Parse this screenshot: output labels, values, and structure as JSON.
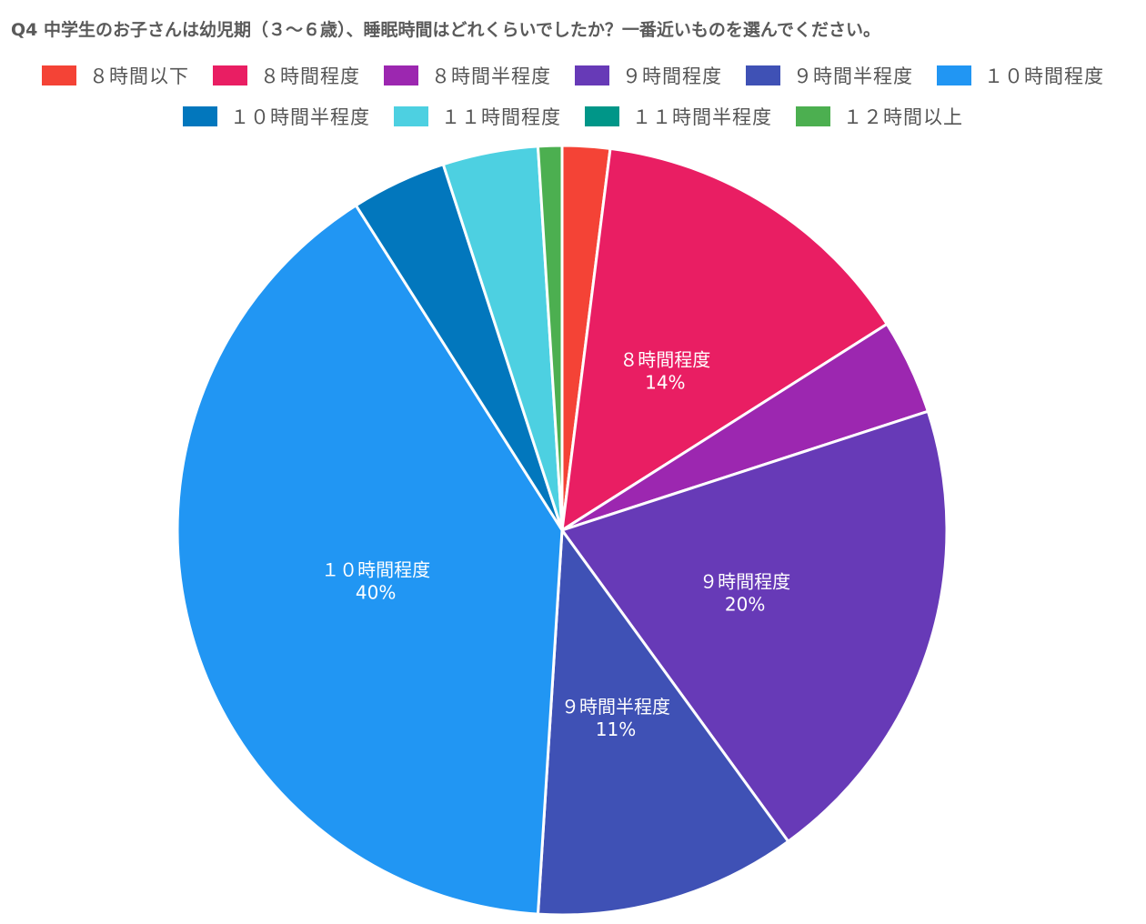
{
  "title": "Q4 中学生のお子さんは幼児期（３〜６歳）、睡眠時間はどれくらいでしたか？一番近いものを選んでください。",
  "chart_data": {
    "type": "pie",
    "title": "Q4 中学生のお子さんは幼児期（３〜６歳）、睡眠時間はどれくらいでしたか？一番近いものを選んでください。",
    "legend_position": "top",
    "slices": [
      {
        "label": "８時間以下",
        "value": 2,
        "color": "#F44336"
      },
      {
        "label": "８時間程度",
        "value": 14,
        "color": "#E91E63",
        "data_label": "14%"
      },
      {
        "label": "８時間半程度",
        "value": 4,
        "color": "#9C27B0"
      },
      {
        "label": "９時間程度",
        "value": 20,
        "color": "#673AB7",
        "data_label": "20%"
      },
      {
        "label": "９時間半程度",
        "value": 11,
        "color": "#3F51B5",
        "data_label": "11%"
      },
      {
        "label": "１０時間程度",
        "value": 40,
        "color": "#2196F3",
        "data_label": "40%"
      },
      {
        "label": "１０時間半程度",
        "value": 4,
        "color": "#0277BD"
      },
      {
        "label": "１１時間程度",
        "value": 4,
        "color": "#4DD0E1"
      },
      {
        "label": "１１時間半程度",
        "value": 0,
        "color": "#009688"
      },
      {
        "label": "１２時間以上",
        "value": 1,
        "color": "#4CAF50"
      }
    ]
  }
}
